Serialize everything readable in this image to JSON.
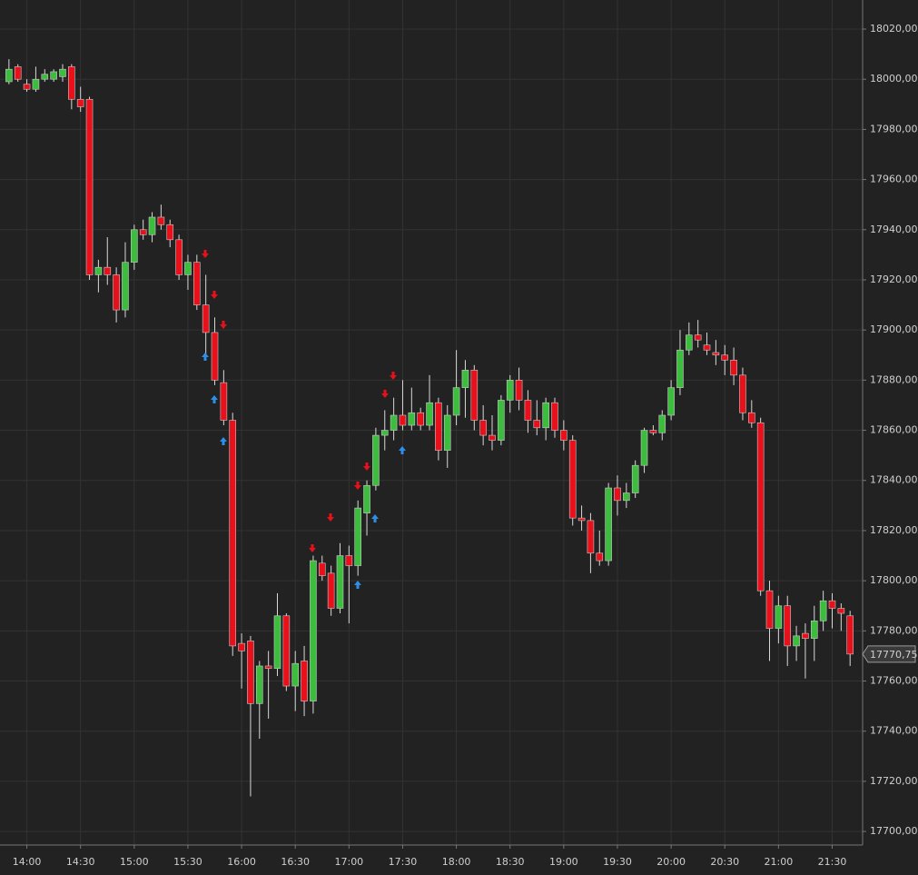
{
  "chart_data": {
    "type": "candlestick",
    "x": [
      "13:50",
      "13:55",
      "14:00",
      "14:05",
      "14:10",
      "14:15",
      "14:20",
      "14:25",
      "14:30",
      "14:35",
      "14:40",
      "14:45",
      "14:50",
      "14:55",
      "15:00",
      "15:05",
      "15:10",
      "15:15",
      "15:20",
      "15:25",
      "15:30",
      "15:35",
      "15:40",
      "15:45",
      "15:50",
      "15:55",
      "16:00",
      "16:05",
      "16:10",
      "16:15",
      "16:20",
      "16:25",
      "16:30",
      "16:35",
      "16:40",
      "16:45",
      "16:50",
      "16:55",
      "17:00",
      "17:05",
      "17:10",
      "17:15",
      "17:20",
      "17:25",
      "17:30",
      "17:35",
      "17:40",
      "17:45",
      "17:50",
      "17:55",
      "18:00",
      "18:05",
      "18:10",
      "18:15",
      "18:20",
      "18:25",
      "18:30",
      "18:35",
      "18:40",
      "18:45",
      "18:50",
      "18:55",
      "19:00",
      "19:05",
      "19:10",
      "19:15",
      "19:20",
      "19:25",
      "19:30",
      "19:35",
      "19:40",
      "19:45",
      "19:50",
      "19:55",
      "20:00",
      "20:05",
      "20:10",
      "20:15",
      "20:20",
      "20:25",
      "20:30",
      "20:35",
      "20:40",
      "20:45",
      "20:50",
      "20:55",
      "21:00",
      "21:05",
      "21:10",
      "21:15",
      "21:20",
      "21:25",
      "21:30",
      "21:35",
      "21:40"
    ],
    "open": [
      17999,
      18005,
      17998,
      17996,
      18000,
      18000,
      18001,
      18005,
      17992,
      17992,
      17922,
      17925,
      17922,
      17908,
      17927,
      17940,
      17938,
      17945,
      17942,
      17936,
      17922,
      17927,
      17910,
      17899,
      17879,
      17864,
      17775,
      17776,
      17751,
      17766,
      17765,
      17786,
      17758,
      17768,
      17752,
      17807,
      17803,
      17789,
      17810,
      17806,
      17827,
      17838,
      17858,
      17860,
      17866,
      17862,
      17867,
      17862,
      17871,
      17852,
      17866,
      17877,
      17884,
      17864,
      17858,
      17856,
      17872,
      17880,
      17872,
      17864,
      17861,
      17871,
      17860,
      17856,
      17825,
      17824,
      17811,
      17808,
      17837,
      17832,
      17835,
      17846,
      17860,
      17859,
      17866,
      17877,
      17892,
      17898,
      17894,
      17891,
      17890,
      17888,
      17882,
      17867,
      17863,
      17796,
      17781,
      17790,
      17774,
      17779,
      17777,
      17784,
      17792,
      17789,
      17786
    ],
    "high": [
      18008,
      18006,
      18000,
      18005,
      18004,
      18004,
      18006,
      18006,
      17997,
      17993,
      17928,
      17937,
      17925,
      17935,
      17942,
      17944,
      17947,
      17950,
      17944,
      17938,
      17930,
      17930,
      17922,
      17905,
      17884,
      17867,
      17779,
      17778,
      17768,
      17772,
      17795,
      17787,
      17772,
      17774,
      17810,
      17810,
      17806,
      17815,
      17814,
      17832,
      17840,
      17861,
      17868,
      17873,
      17880,
      17877,
      17869,
      17882,
      17873,
      17870,
      17892,
      17888,
      17886,
      17870,
      17866,
      17874,
      17882,
      17885,
      17876,
      17872,
      17873,
      17873,
      17864,
      17858,
      17830,
      17827,
      17820,
      17839,
      17842,
      17839,
      17848,
      17861,
      17862,
      17868,
      17880,
      17900,
      17903,
      17904,
      17899,
      17896,
      17894,
      17893,
      17885,
      17872,
      17865,
      17800,
      17794,
      17794,
      17782,
      17783,
      17790,
      17796,
      17795,
      17791,
      17788
    ],
    "low": [
      17998,
      17999,
      17995,
      17995,
      17999,
      17999,
      17999,
      17988,
      17987,
      17920,
      17915,
      17918,
      17903,
      17905,
      17924,
      17936,
      17935,
      17940,
      17933,
      17920,
      17916,
      17908,
      17890,
      17878,
      17862,
      17770,
      17757,
      17714,
      17737,
      17745,
      17762,
      17756,
      17748,
      17746,
      17747,
      17800,
      17786,
      17787,
      17783,
      17802,
      17818,
      17836,
      17852,
      17856,
      17860,
      17860,
      17860,
      17860,
      17848,
      17845,
      17862,
      17865,
      17860,
      17854,
      17852,
      17854,
      17867,
      17868,
      17859,
      17858,
      17856,
      17857,
      17852,
      17822,
      17820,
      17803,
      17806,
      17806,
      17826,
      17829,
      17833,
      17843,
      17858,
      17856,
      17864,
      17874,
      17890,
      17893,
      17890,
      17886,
      17882,
      17878,
      17864,
      17861,
      17794,
      17768,
      17775,
      17766,
      17768,
      17761,
      17768,
      17780,
      17781,
      17780,
      17766
    ],
    "close": [
      18004,
      18000,
      17996,
      18000,
      18002,
      18003,
      18004,
      17992,
      17989,
      17922,
      17925,
      17922,
      17908,
      17927,
      17940,
      17938,
      17945,
      17942,
      17936,
      17922,
      17927,
      17910,
      17899,
      17880,
      17864,
      17774,
      17772,
      17751,
      17766,
      17765,
      17786,
      17758,
      17767,
      17752,
      17808,
      17802,
      17789,
      17810,
      17806,
      17829,
      17838,
      17858,
      17860,
      17866,
      17862,
      17867,
      17862,
      17871,
      17852,
      17866,
      17877,
      17884,
      17864,
      17858,
      17856,
      17872,
      17880,
      17872,
      17864,
      17861,
      17871,
      17860,
      17856,
      17825,
      17824,
      17811,
      17808,
      17837,
      17832,
      17835,
      17846,
      17860,
      17859,
      17866,
      17877,
      17892,
      17898,
      17896,
      17892,
      17890,
      17888,
      17882,
      17867,
      17863,
      17796,
      17781,
      17790,
      17774,
      17778,
      17777,
      17784,
      17792,
      17789,
      17787,
      17770.75
    ],
    "up_color": "#3dbd3d",
    "down_color": "#e8101a",
    "xlim": [
      "13:45",
      "21:47"
    ],
    "xticks": [
      "14:00",
      "14:30",
      "15:00",
      "15:30",
      "16:00",
      "16:30",
      "17:00",
      "17:30",
      "18:00",
      "18:30",
      "19:00",
      "19:30",
      "20:00",
      "20:30",
      "21:00",
      "21:30"
    ],
    "ylim": [
      17694.6,
      18031.6
    ],
    "yticks": [
      {
        "value": 17700,
        "label": "17700,00"
      },
      {
        "value": 17720,
        "label": "17720,00"
      },
      {
        "value": 17740,
        "label": "17740,00"
      },
      {
        "value": 17760,
        "label": "17760,00"
      },
      {
        "value": 17780,
        "label": "17780,00"
      },
      {
        "value": 17800,
        "label": "17800,00"
      },
      {
        "value": 17820,
        "label": "17820,00"
      },
      {
        "value": 17840,
        "label": "17840,00"
      },
      {
        "value": 17860,
        "label": "17860,00"
      },
      {
        "value": 17880,
        "label": "17880,00"
      },
      {
        "value": 17900,
        "label": "17900,00"
      },
      {
        "value": 17920,
        "label": "17920,00"
      },
      {
        "value": 17940,
        "label": "17940,00"
      },
      {
        "value": 17960,
        "label": "17960,00"
      },
      {
        "value": 17980,
        "label": "17980,00"
      },
      {
        "value": 18000,
        "label": "18000,00"
      },
      {
        "value": 18020,
        "label": "18020,00"
      }
    ],
    "last_price": {
      "value": 17770.75,
      "label": "17770,75"
    },
    "grid": true
  }
}
